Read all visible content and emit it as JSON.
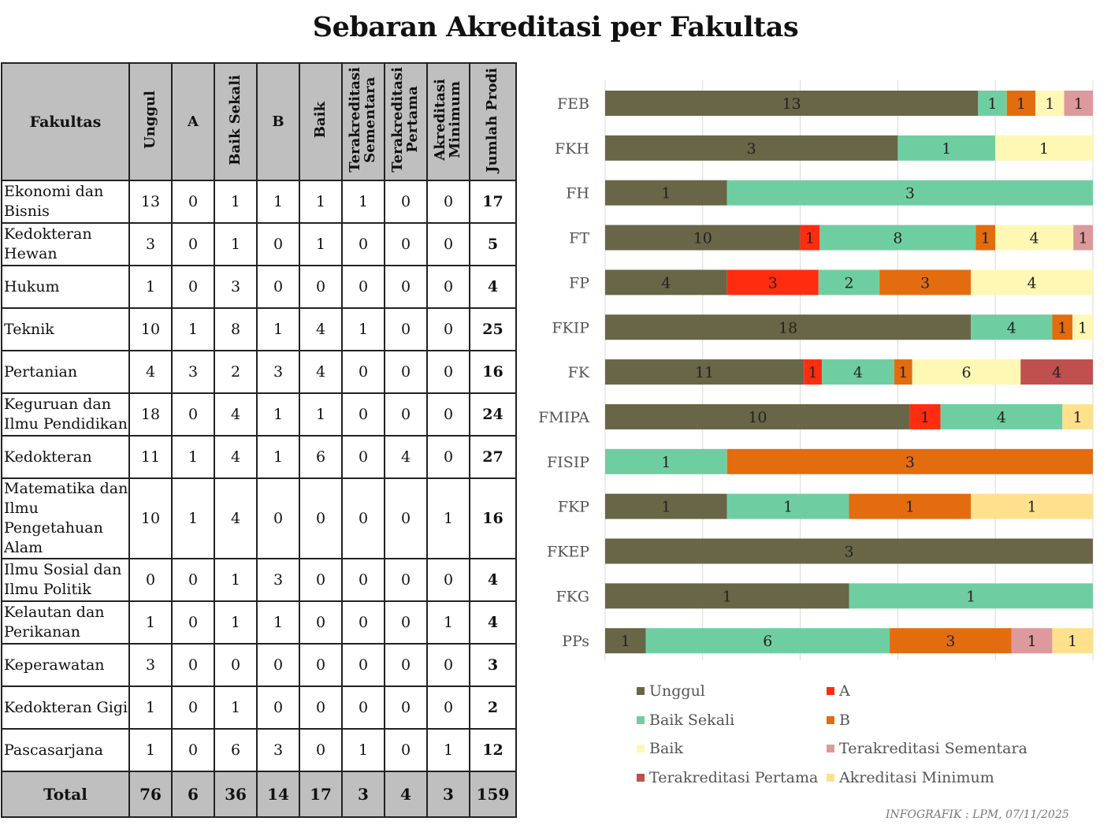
{
  "title": "Sebaran Akreditasi per Fakultas",
  "footer": "INFOGRAFIK : LPM, 07/11/2025",
  "table": {
    "headers": {
      "fakultas": "Fakultas",
      "unggul": "Unggul",
      "a": "A",
      "baik_sekali": "Baik Sekali",
      "b": "B",
      "baik": "Baik",
      "terakreditasi_sementara": "Terakreditasi\nSementara",
      "terakreditasi_pertama": "Terakreditasi\nPertama",
      "akreditasi_minimum": "Akreditasi\nMinimum",
      "jumlah_prodi": "Jumlah Prodi"
    },
    "rows": [
      {
        "fakultas": "Ekonomi dan Bisnis",
        "values": [
          "13",
          "0",
          "1",
          "1",
          "1",
          "1",
          "0",
          "0"
        ],
        "jumlah": "17"
      },
      {
        "fakultas": "Kedokteran Hewan",
        "values": [
          "3",
          "0",
          "1",
          "0",
          "1",
          "0",
          "0",
          "0"
        ],
        "jumlah": "5"
      },
      {
        "fakultas": "Hukum",
        "values": [
          "1",
          "0",
          "3",
          "0",
          "0",
          "0",
          "0",
          "0"
        ],
        "jumlah": "4"
      },
      {
        "fakultas": "Teknik",
        "values": [
          "10",
          "1",
          "8",
          "1",
          "4",
          "1",
          "0",
          "0"
        ],
        "jumlah": "25"
      },
      {
        "fakultas": "Pertanian",
        "values": [
          "4",
          "3",
          "2",
          "3",
          "4",
          "0",
          "0",
          "0"
        ],
        "jumlah": "16"
      },
      {
        "fakultas": "Keguruan dan Ilmu Pendidikan",
        "values": [
          "18",
          "0",
          "4",
          "1",
          "1",
          "0",
          "0",
          "0"
        ],
        "jumlah": "24"
      },
      {
        "fakultas": "Kedokteran",
        "values": [
          "11",
          "1",
          "4",
          "1",
          "6",
          "0",
          "4",
          "0"
        ],
        "jumlah": "27"
      },
      {
        "fakultas": "Matematika dan Ilmu Pengetahuan Alam",
        "values": [
          "10",
          "1",
          "4",
          "0",
          "0",
          "0",
          "0",
          "1"
        ],
        "jumlah": "16"
      },
      {
        "fakultas": "Ilmu Sosial dan Ilmu Politik",
        "values": [
          "0",
          "0",
          "1",
          "3",
          "0",
          "0",
          "0",
          "0"
        ],
        "jumlah": "4"
      },
      {
        "fakultas": "Kelautan dan Perikanan",
        "values": [
          "1",
          "0",
          "1",
          "1",
          "0",
          "0",
          "0",
          "1"
        ],
        "jumlah": "4"
      },
      {
        "fakultas": "Keperawatan",
        "values": [
          "3",
          "0",
          "0",
          "0",
          "0",
          "0",
          "0",
          "0"
        ],
        "jumlah": "3"
      },
      {
        "fakultas": "Kedokteran Gigi",
        "values": [
          "1",
          "0",
          "1",
          "0",
          "0",
          "0",
          "0",
          "0"
        ],
        "jumlah": "2"
      },
      {
        "fakultas": "Pascasarjana",
        "values": [
          "1",
          "0",
          "6",
          "3",
          "0",
          "1",
          "0",
          "1"
        ],
        "jumlah": "12"
      }
    ],
    "total": {
      "label": "Total",
      "values": [
        "76",
        "6",
        "36",
        "14",
        "17",
        "3",
        "4",
        "3"
      ],
      "jumlah": "159"
    }
  },
  "chart_data": {
    "type": "bar",
    "orientation": "horizontal",
    "stacking": "percent",
    "title": "",
    "categories": [
      "FEB",
      "FKH",
      "FH",
      "FT",
      "FP",
      "FKIP",
      "FK",
      "FMIPA",
      "FISIP",
      "FKP",
      "FKEP",
      "FKG",
      "PPs"
    ],
    "series": [
      {
        "name": "Unggul",
        "color": "#686647",
        "values": [
          13,
          3,
          1,
          10,
          4,
          18,
          11,
          10,
          0,
          1,
          3,
          1,
          1
        ]
      },
      {
        "name": "A",
        "color": "#ff2d0f",
        "values": [
          0,
          0,
          0,
          1,
          3,
          0,
          1,
          1,
          0,
          0,
          0,
          0,
          0
        ]
      },
      {
        "name": "Baik Sekali",
        "color": "#6fcea1",
        "values": [
          1,
          1,
          3,
          8,
          2,
          4,
          4,
          4,
          1,
          1,
          0,
          1,
          6
        ]
      },
      {
        "name": "B",
        "color": "#e36c0f",
        "values": [
          1,
          0,
          0,
          1,
          3,
          1,
          1,
          0,
          3,
          1,
          0,
          0,
          3
        ]
      },
      {
        "name": "Baik",
        "color": "#fff8b4",
        "values": [
          1,
          1,
          0,
          4,
          4,
          1,
          6,
          0,
          0,
          0,
          0,
          0,
          0
        ]
      },
      {
        "name": "Terakreditasi Sementara",
        "color": "#dd999b",
        "values": [
          1,
          0,
          0,
          1,
          0,
          0,
          0,
          0,
          0,
          0,
          0,
          0,
          1
        ]
      },
      {
        "name": "Terakreditasi Pertama",
        "color": "#c0504d",
        "values": [
          0,
          0,
          0,
          0,
          0,
          0,
          4,
          0,
          0,
          0,
          0,
          0,
          0
        ]
      },
      {
        "name": "Akreditasi Minimum",
        "color": "#ffe08c",
        "values": [
          0,
          0,
          0,
          0,
          0,
          0,
          0,
          1,
          0,
          1,
          0,
          0,
          1
        ]
      }
    ],
    "grid": true,
    "legend_position": "bottom"
  }
}
